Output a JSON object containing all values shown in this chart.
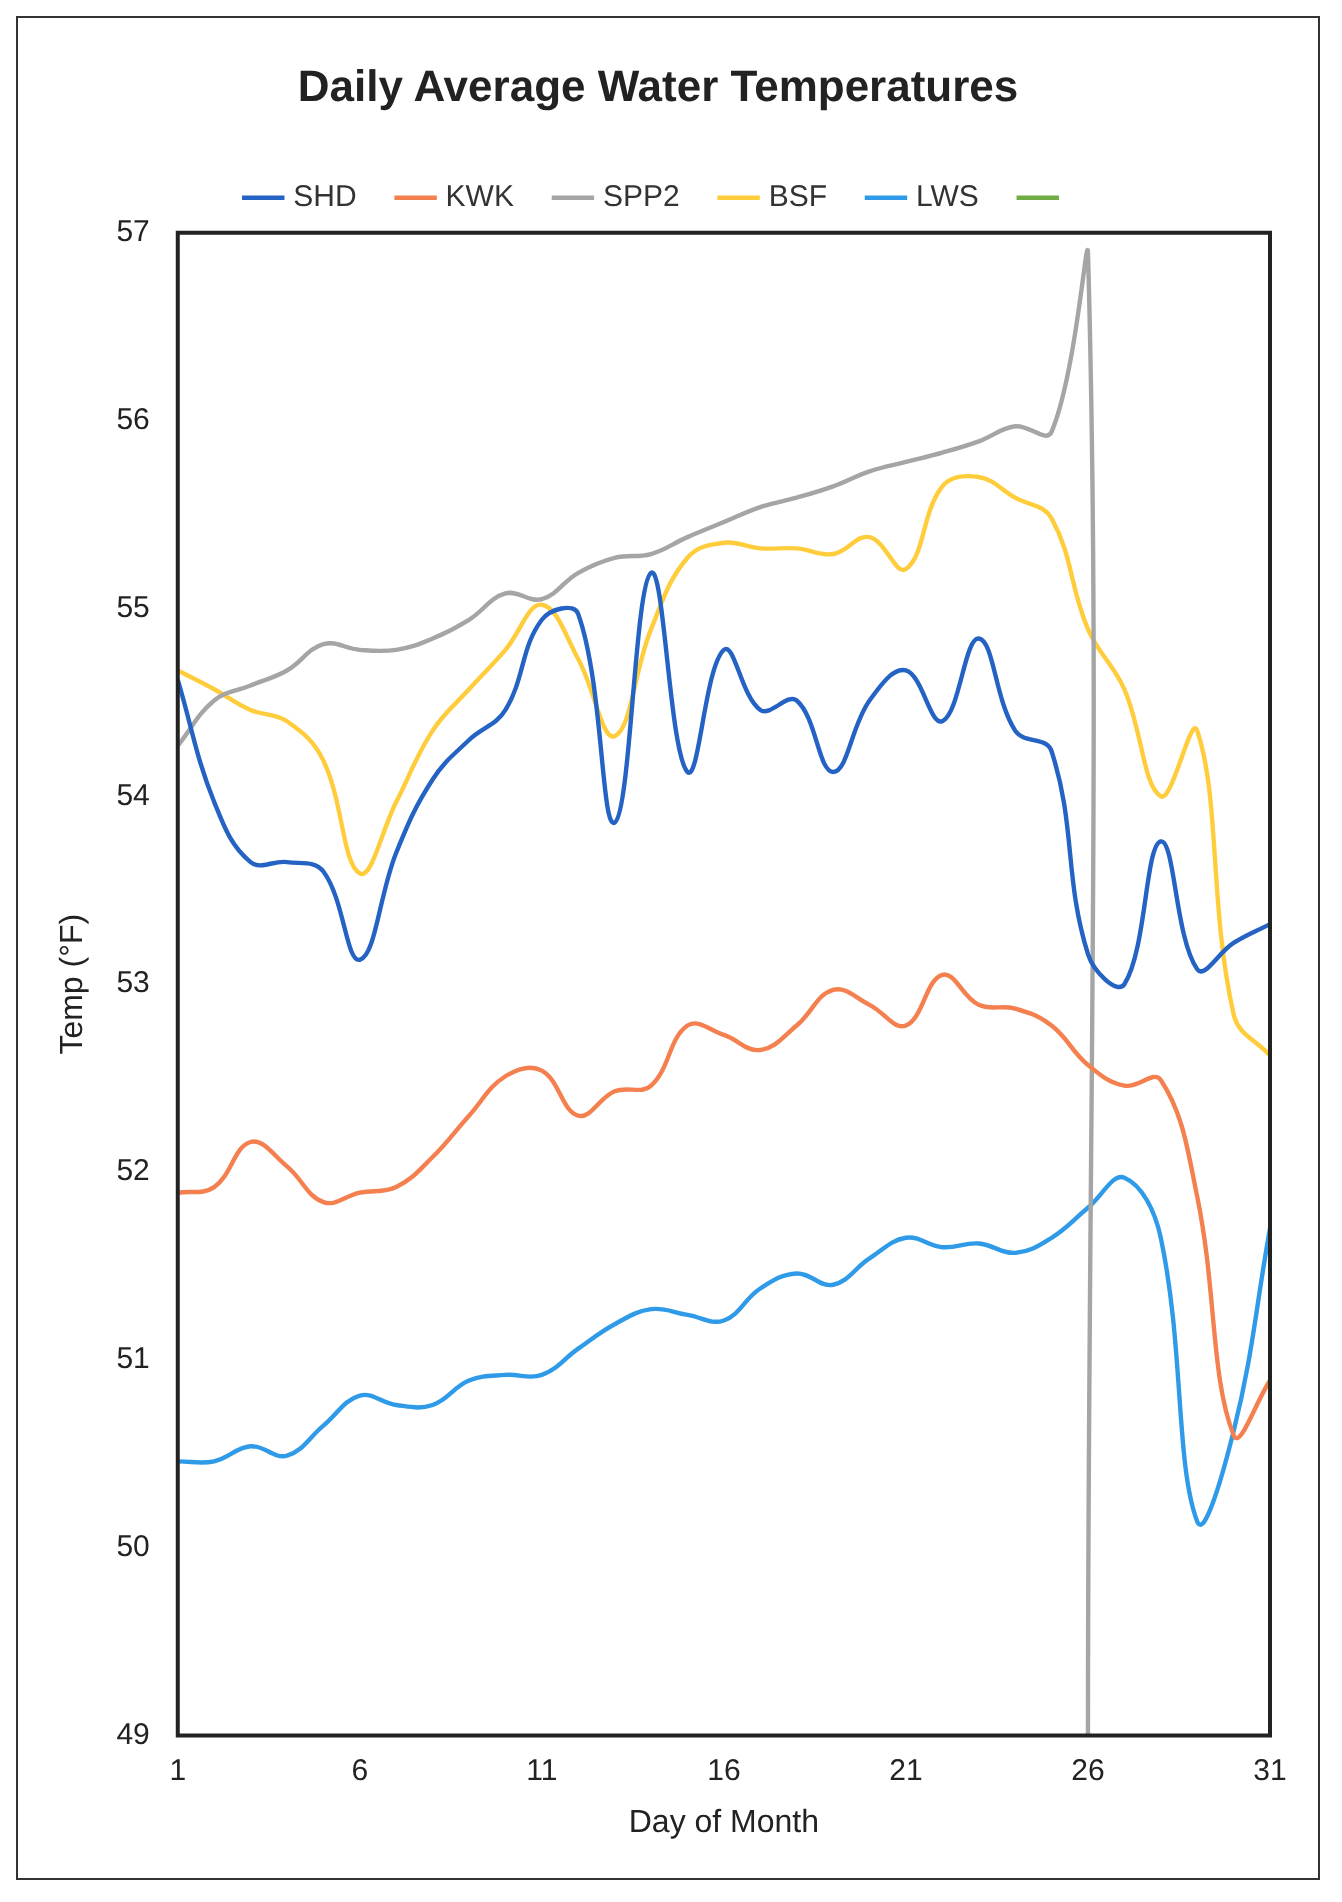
{
  "chart_data": {
    "type": "line",
    "title": "Daily Average Water Temperatures",
    "xlabel": "Day of Month",
    "ylabel": "Temp (°F)",
    "x": [
      1,
      2,
      3,
      4,
      5,
      6,
      7,
      8,
      9,
      10,
      11,
      12,
      13,
      14,
      15,
      16,
      17,
      18,
      19,
      20,
      21,
      22,
      23,
      24,
      25,
      26,
      27,
      28,
      29,
      30,
      31
    ],
    "xlim": [
      1,
      31
    ],
    "xticks": [
      1,
      6,
      11,
      16,
      21,
      26,
      31
    ],
    "ylim": [
      49,
      57
    ],
    "yticks": [
      49,
      50,
      51,
      52,
      53,
      54,
      55,
      56,
      57
    ],
    "grid": false,
    "legend": "top",
    "marker": "none",
    "line_style": "solid",
    "series": [
      {
        "name": "SHD",
        "color": "#2463c4",
        "values": [
          54.62,
          53.97,
          53.65,
          53.65,
          53.6,
          53.13,
          53.7,
          54.09,
          54.3,
          54.46,
          54.94,
          54.97,
          53.86,
          55.19,
          54.13,
          54.78,
          54.46,
          54.51,
          54.13,
          54.51,
          54.67,
          54.4,
          54.84,
          54.35,
          54.24,
          53.16,
          53.0,
          53.76,
          53.08,
          53.22,
          53.32
        ]
      },
      {
        "name": "KWK",
        "color": "#f4804f",
        "values": [
          51.89,
          51.92,
          52.16,
          52.03,
          51.84,
          51.89,
          51.92,
          52.08,
          52.3,
          52.51,
          52.54,
          52.3,
          52.43,
          52.46,
          52.78,
          52.73,
          52.65,
          52.78,
          52.97,
          52.89,
          52.78,
          53.05,
          52.89,
          52.87,
          52.78,
          52.57,
          52.46,
          52.49,
          51.87,
          50.6,
          50.89
        ]
      },
      {
        "name": "SPP2",
        "color": "#a5a5a5",
        "x": [
          1,
          2,
          3,
          4,
          5,
          6,
          7,
          8,
          9,
          10,
          11,
          12,
          13,
          14,
          15,
          16,
          17,
          18,
          19,
          20,
          21,
          22,
          23,
          24,
          25,
          26,
          26
        ],
        "values": [
          54.27,
          54.51,
          54.59,
          54.67,
          54.81,
          54.78,
          54.78,
          54.84,
          54.94,
          55.08,
          55.05,
          55.19,
          55.27,
          55.29,
          55.38,
          55.46,
          55.54,
          55.59,
          55.65,
          55.73,
          55.78,
          55.83,
          55.89,
          55.97,
          55.94,
          56.9,
          49
        ]
      },
      {
        "name": "BSF",
        "color": "#ffcd3c",
        "values": [
          54.67,
          54.57,
          54.46,
          54.4,
          54.19,
          53.59,
          53.97,
          54.35,
          54.57,
          54.78,
          55.02,
          54.73,
          54.32,
          54.89,
          55.27,
          55.35,
          55.32,
          55.32,
          55.29,
          55.38,
          55.21,
          55.65,
          55.7,
          55.59,
          55.48,
          54.89,
          54.57,
          54.0,
          54.35,
          52.84,
          52.62
        ]
      },
      {
        "name": "LWS",
        "color": "#2f9be8",
        "values": [
          50.46,
          50.46,
          50.54,
          50.49,
          50.65,
          50.81,
          50.76,
          50.76,
          50.89,
          50.92,
          50.92,
          51.06,
          51.19,
          51.27,
          51.24,
          51.21,
          51.38,
          51.46,
          51.4,
          51.54,
          51.65,
          51.6,
          51.62,
          51.57,
          51.65,
          51.81,
          51.97,
          51.65,
          50.14,
          50.62,
          51.7
        ]
      },
      {
        "color": "#70ad47",
        "values": [
          null,
          null,
          null,
          null,
          null,
          null,
          null,
          null,
          null,
          null,
          null,
          null,
          null,
          null,
          null,
          null,
          null,
          null,
          null,
          null,
          null,
          null,
          null,
          null,
          null,
          null,
          null,
          null,
          null,
          null,
          null
        ]
      }
    ]
  }
}
